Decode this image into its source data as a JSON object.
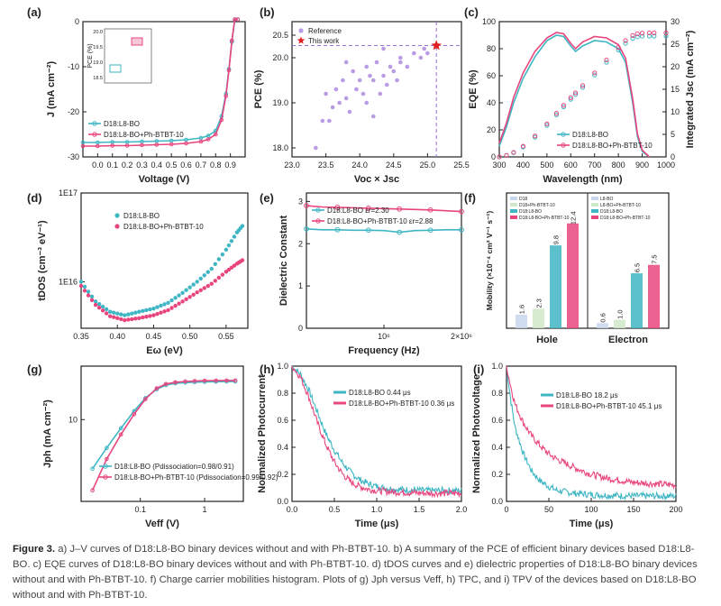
{
  "caption": {
    "label": "Figure 3.",
    "text": "a) J–V curves of D18:L8-BO binary devices without and with Ph-BTBT-10. b) A summary of the PCE of efficient binary devices based D18:L8-BO. c) EQE curves of D18:L8-BO binary devices without and with Ph-BTBT-10. d) tDOS curves and e) dielectric properties of D18:L8-BO binary devices without and with Ph-BTBT-10. f) Charge carrier mobilities histogram. Plots of g) Jph versus Veff, h) TPC, and i) TPV of the devices based on D18:L8-BO without and with Ph-BTBT-10."
  },
  "colors": {
    "cyan": "#3fb6c4",
    "pink": "#e8457f",
    "purple": "#b99be6",
    "star": "#e02020"
  },
  "chart_data": [
    {
      "panel": "(a)",
      "type": "line",
      "xlabel": "Voltage (V)",
      "ylabel": "J (mA cm⁻²)",
      "xlim": [
        -0.1,
        1.0
      ],
      "ylim": [
        -30,
        0
      ],
      "xticks": [
        "0.0",
        "0.1",
        "0.2",
        "0.3",
        "0.4",
        "0.5",
        "0.6",
        "0.7",
        "0.8",
        "0.9"
      ],
      "yticks": [
        "0",
        "-10",
        "-20",
        "-30"
      ],
      "series": [
        {
          "name": "D18:L8-BO",
          "x": [
            -0.1,
            0.0,
            0.1,
            0.2,
            0.3,
            0.4,
            0.5,
            0.6,
            0.7,
            0.75,
            0.8,
            0.84,
            0.87,
            0.89,
            0.91,
            0.93,
            0.95
          ],
          "y": [
            -26.8,
            -26.8,
            -26.7,
            -26.7,
            -26.6,
            -26.5,
            -26.4,
            -26.2,
            -25.8,
            -25.3,
            -24.2,
            -21.0,
            -16.0,
            -10.5,
            -4.5,
            1.5,
            8.0
          ]
        },
        {
          "name": "D18:L8-BO+Ph-BTBT-10",
          "x": [
            -0.1,
            0.0,
            0.1,
            0.2,
            0.3,
            0.4,
            0.5,
            0.6,
            0.7,
            0.75,
            0.8,
            0.84,
            0.87,
            0.89,
            0.91,
            0.93,
            0.95
          ],
          "y": [
            -27.6,
            -27.6,
            -27.5,
            -27.5,
            -27.4,
            -27.3,
            -27.2,
            -27.0,
            -26.6,
            -26.1,
            -25.0,
            -21.8,
            -16.5,
            -10.8,
            -4.2,
            2.0,
            8.5
          ]
        }
      ],
      "inset": {
        "ylabel": "PCE (%)",
        "yticks": [
          "18.5",
          "19.0",
          "19.5",
          "20.0"
        ]
      }
    },
    {
      "panel": "(b)",
      "type": "scatter",
      "xlabel": "Voc × Jsc",
      "ylabel": "PCE (%)",
      "xlim": [
        23.0,
        25.5
      ],
      "ylim": [
        17.8,
        20.8
      ],
      "xticks": [
        "23.0",
        "23.5",
        "24.0",
        "24.5",
        "25.0",
        "25.5"
      ],
      "yticks": [
        "18.0",
        "19.0",
        "20.0",
        "20.5"
      ],
      "series": [
        {
          "name": "Reference",
          "x": [
            23.35,
            23.45,
            23.5,
            23.55,
            23.6,
            23.65,
            23.7,
            23.75,
            23.8,
            23.85,
            23.9,
            23.95,
            24.0,
            24.05,
            24.1,
            24.15,
            24.2,
            24.25,
            24.3,
            24.35,
            24.4,
            24.45,
            24.5,
            24.55,
            24.6,
            24.7,
            24.8,
            24.9,
            24.95,
            25.0,
            24.1,
            23.8,
            24.35,
            24.6,
            24.2
          ],
          "y": [
            18.0,
            18.6,
            19.2,
            18.6,
            18.9,
            19.3,
            19.0,
            19.5,
            19.1,
            18.8,
            19.7,
            19.3,
            19.5,
            19.2,
            19.8,
            19.6,
            18.7,
            19.9,
            19.2,
            19.6,
            19.4,
            19.8,
            19.7,
            19.5,
            20.0,
            19.8,
            20.1,
            20.0,
            20.2,
            20.1,
            19.0,
            19.9,
            20.2,
            19.9,
            19.5
          ]
        },
        {
          "name": "This work",
          "x": [
            25.13
          ],
          "y": [
            20.27
          ]
        }
      ]
    },
    {
      "panel": "(c)",
      "type": "line",
      "xlabel": "Wavelength (nm)",
      "ylabel": "EQE (%)",
      "y2label": "Integrated Jsc (mA cm⁻²)",
      "xlim": [
        300,
        1000
      ],
      "ylim": [
        0,
        100
      ],
      "y2lim": [
        0,
        30
      ],
      "xticks": [
        "300",
        "400",
        "500",
        "600",
        "700",
        "800",
        "900",
        "1000"
      ],
      "yticks": [
        "0",
        "20",
        "40",
        "60",
        "80",
        "100"
      ],
      "y2ticks": [
        "0",
        "5",
        "10",
        "15",
        "20",
        "25",
        "30"
      ],
      "series": [
        {
          "name": "D18:L8-BO",
          "x": [
            300,
            330,
            360,
            400,
            450,
            500,
            540,
            570,
            600,
            620,
            650,
            700,
            750,
            800,
            830,
            860,
            880,
            900,
            930
          ],
          "y": [
            8,
            22,
            40,
            58,
            74,
            86,
            90,
            89,
            82,
            78,
            82,
            86,
            85,
            80,
            70,
            40,
            15,
            4,
            0
          ]
        },
        {
          "name": "D18:L8-BO+Ph-BTBT-10",
          "x": [
            300,
            330,
            360,
            400,
            450,
            500,
            540,
            570,
            600,
            620,
            650,
            700,
            750,
            800,
            830,
            860,
            880,
            900,
            930
          ],
          "y": [
            10,
            25,
            44,
            62,
            78,
            88,
            92,
            91,
            84,
            80,
            85,
            89,
            88,
            83,
            73,
            43,
            17,
            5,
            0
          ]
        }
      ]
    },
    {
      "panel": "(d)",
      "type": "line",
      "xlabel": "Eω (eV)",
      "ylabel": "tDOS (cm⁻³ eV⁻¹)",
      "yscale": "log",
      "xlim": [
        0.35,
        0.58
      ],
      "ylim": [
        3000000000000000.0,
        1e+17
      ],
      "xticks": [
        "0.35",
        "0.40",
        "0.45",
        "0.50",
        "0.55"
      ],
      "yticks": [
        "1E17",
        "1E16"
      ],
      "series": [
        {
          "name": "D18:L8-BO",
          "x": [
            0.35,
            0.37,
            0.39,
            0.41,
            0.43,
            0.45,
            0.47,
            0.49,
            0.51,
            0.53,
            0.55,
            0.565,
            0.575
          ],
          "y": [
            1e+16,
            6000000000000000.0,
            4600000000000000.0,
            4200000000000000.0,
            4600000000000000.0,
            5000000000000000.0,
            5800000000000000.0,
            7500000000000000.0,
            1e+16,
            1.4e+16,
            2.3e+16,
            3.6e+16,
            4.5e+16
          ]
        },
        {
          "name": "D18:L8-BO+Ph-BTBT-10",
          "x": [
            0.35,
            0.37,
            0.39,
            0.41,
            0.43,
            0.45,
            0.47,
            0.49,
            0.51,
            0.53,
            0.55,
            0.565,
            0.575
          ],
          "y": [
            9000000000000000.0,
            5500000000000000.0,
            4100000000000000.0,
            3700000000000000.0,
            3900000000000000.0,
            4200000000000000.0,
            4800000000000000.0,
            6000000000000000.0,
            7600000000000000.0,
            9500000000000000.0,
            1.3e+16,
            1.6e+16,
            1.8e+16
          ]
        }
      ]
    },
    {
      "panel": "(e)",
      "type": "line",
      "xlabel": "Frequency (Hz)",
      "ylabel": "Dielectric Constant",
      "xlim": [
        0,
        2000000
      ],
      "ylim": [
        0,
        3.2
      ],
      "xticks": [
        "10⁶",
        "2×10⁶"
      ],
      "yticks": [
        "0",
        "1",
        "2",
        "3"
      ],
      "series": [
        {
          "name": "D18:L8-BO εr=2.30",
          "x": [
            0,
            200000,
            400000,
            600000,
            800000,
            1000000,
            1200000,
            1400000,
            1600000,
            1800000,
            2000000
          ],
          "y": [
            2.35,
            2.33,
            2.33,
            2.32,
            2.32,
            2.31,
            2.27,
            2.31,
            2.32,
            2.33,
            2.33
          ]
        },
        {
          "name": "D18:L8-BO+Ph-BTBT-10 εr=2.88",
          "x": [
            0,
            200000,
            400000,
            600000,
            800000,
            1000000,
            1200000,
            1400000,
            1600000,
            1800000,
            2000000
          ],
          "y": [
            2.9,
            2.87,
            2.86,
            2.85,
            2.84,
            2.83,
            2.82,
            2.81,
            2.8,
            2.78,
            2.76
          ]
        }
      ]
    },
    {
      "panel": "(f)",
      "type": "bar",
      "ylabel": "Mobility (×10⁻⁴ cm² V⁻¹ s⁻¹)",
      "categories": [
        "Hole",
        "Electron"
      ],
      "legend_hole": [
        "D18",
        "D18+Ph-BTBT-10",
        "D18:L8-BO",
        "D18:L8-BO+Ph-BTBT-10"
      ],
      "legend_electron": [
        "L8-BO",
        "L8-BO+Ph-BTBT-10",
        "D18:L8-BO",
        "D18:L8-BO+Ph-BTBT-10"
      ],
      "bars": [
        {
          "group": "Hole",
          "value": 1.6,
          "label": "1.6"
        },
        {
          "group": "Hole",
          "value": 2.3,
          "label": "2.3"
        },
        {
          "group": "Hole",
          "value": 9.8,
          "label": "9.8"
        },
        {
          "group": "Hole",
          "value": 12.4,
          "label": "12.4"
        },
        {
          "group": "Electron",
          "value": 0.6,
          "label": "0.6"
        },
        {
          "group": "Electron",
          "value": 1.0,
          "label": "1.0"
        },
        {
          "group": "Electron",
          "value": 6.5,
          "label": "6.5"
        },
        {
          "group": "Electron",
          "value": 7.5,
          "label": "7.5"
        }
      ]
    },
    {
      "panel": "(g)",
      "type": "line",
      "xscale": "log",
      "yscale": "log",
      "xlabel": "Veff (V)",
      "ylabel": "Jph (mA cm⁻²)",
      "xlim": [
        0.012,
        4
      ],
      "ylim": [
        1.2,
        40
      ],
      "xticks": [
        "0.1",
        "1"
      ],
      "yticks": [
        "10"
      ],
      "series": [
        {
          "name": "D18:L8-BO (Pdissociation=0.98/0.91)",
          "x": [
            0.018,
            0.03,
            0.05,
            0.08,
            0.12,
            0.18,
            0.25,
            0.35,
            0.5,
            0.7,
            1.0,
            1.5,
            2.2,
            3.0
          ],
          "y": [
            2.8,
            4.8,
            8.0,
            12.5,
            17.5,
            22.0,
            24.5,
            25.6,
            26.1,
            26.4,
            26.6,
            26.7,
            26.8,
            26.8
          ]
        },
        {
          "name": "D18:L8-BO+Ph-BTBT-10 (Pdissociation=0.99/0.92)",
          "x": [
            0.018,
            0.03,
            0.05,
            0.08,
            0.12,
            0.18,
            0.25,
            0.35,
            0.5,
            0.7,
            1.0,
            1.5,
            2.2,
            3.0
          ],
          "y": [
            1.6,
            3.6,
            6.8,
            11.5,
            17.0,
            22.5,
            25.2,
            26.3,
            26.9,
            27.2,
            27.4,
            27.5,
            27.6,
            27.6
          ]
        }
      ]
    },
    {
      "panel": "(h)",
      "type": "line",
      "xlabel": "Time (μs)",
      "ylabel": "Normalized Photocurrent",
      "xlim": [
        0,
        2.0
      ],
      "ylim": [
        0,
        1.0
      ],
      "xticks": [
        "0.0",
        "0.5",
        "1.0",
        "1.5",
        "2.0"
      ],
      "yticks": [
        "0.0",
        "0.2",
        "0.4",
        "0.6",
        "0.8",
        "1.0"
      ],
      "series": [
        {
          "name": "D18:L8-BO 0.44 μs",
          "x": [
            0,
            0.1,
            0.2,
            0.3,
            0.4,
            0.5,
            0.6,
            0.7,
            0.8,
            0.9,
            1.0,
            1.2,
            1.4,
            1.6,
            1.8,
            2.0
          ],
          "y": [
            1.0,
            0.94,
            0.82,
            0.66,
            0.5,
            0.38,
            0.28,
            0.21,
            0.16,
            0.13,
            0.11,
            0.09,
            0.085,
            0.08,
            0.08,
            0.08
          ]
        },
        {
          "name": "D18:L8-BO+Ph-BTBT-10 0.36 μs",
          "x": [
            0,
            0.1,
            0.2,
            0.3,
            0.4,
            0.5,
            0.6,
            0.7,
            0.8,
            0.9,
            1.0,
            1.2,
            1.4,
            1.6,
            1.8,
            2.0
          ],
          "y": [
            1.0,
            0.92,
            0.77,
            0.58,
            0.42,
            0.29,
            0.2,
            0.14,
            0.11,
            0.09,
            0.08,
            0.07,
            0.065,
            0.06,
            0.06,
            0.06
          ]
        }
      ]
    },
    {
      "panel": "(i)",
      "type": "line",
      "xlabel": "Time (μs)",
      "ylabel": "Normalized Photovoltage",
      "xlim": [
        0,
        200
      ],
      "ylim": [
        0,
        1.0
      ],
      "xticks": [
        "0",
        "50",
        "100",
        "150",
        "200"
      ],
      "yticks": [
        "0.0",
        "0.2",
        "0.4",
        "0.6",
        "0.8",
        "1.0"
      ],
      "series": [
        {
          "name": "D18:L8-BO 18.2 μs",
          "x": [
            0,
            5,
            10,
            20,
            30,
            40,
            50,
            60,
            80,
            100,
            120,
            150,
            200
          ],
          "y": [
            1.0,
            0.75,
            0.55,
            0.35,
            0.22,
            0.15,
            0.11,
            0.08,
            0.06,
            0.05,
            0.045,
            0.04,
            0.04
          ]
        },
        {
          "name": "D18:L8-BO+Ph-BTBT-10 45.1 μs",
          "x": [
            0,
            5,
            10,
            20,
            30,
            40,
            50,
            60,
            80,
            100,
            120,
            150,
            200
          ],
          "y": [
            1.0,
            0.85,
            0.72,
            0.58,
            0.48,
            0.41,
            0.35,
            0.31,
            0.25,
            0.2,
            0.17,
            0.14,
            0.12
          ]
        }
      ]
    }
  ]
}
